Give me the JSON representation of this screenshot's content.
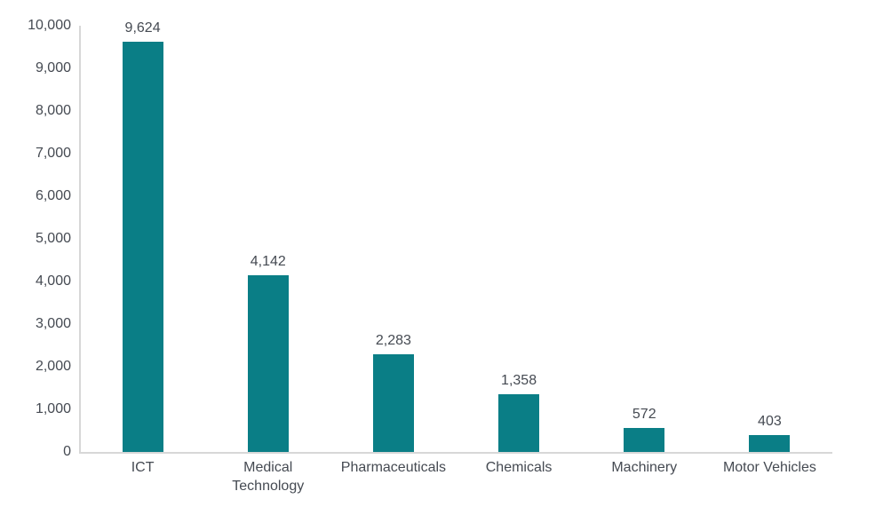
{
  "chart_data": {
    "type": "bar",
    "title": "",
    "xlabel": "",
    "ylabel": "",
    "categories": [
      "ICT",
      "Medical Technology",
      "Pharmaceuticals",
      "Chemicals",
      "Machinery",
      "Motor Vehicles"
    ],
    "values": [
      9624,
      4142,
      2283,
      1358,
      572,
      403
    ],
    "value_labels": [
      "9,624",
      "4,142",
      "2,283",
      "1,358",
      "572",
      "403"
    ],
    "y_axis": {
      "min": 0,
      "max": 10000,
      "step": 1000,
      "tick_labels": [
        "0",
        "1,000",
        "2,000",
        "3,000",
        "4,000",
        "5,000",
        "6,000",
        "7,000",
        "8,000",
        "9,000",
        "10,000"
      ]
    },
    "grid": "off",
    "legend": "none",
    "colors": {
      "bar": "#0a7e86",
      "text": "#454a52",
      "axis_line": "#d7d7d7",
      "background": "#ffffff"
    }
  }
}
